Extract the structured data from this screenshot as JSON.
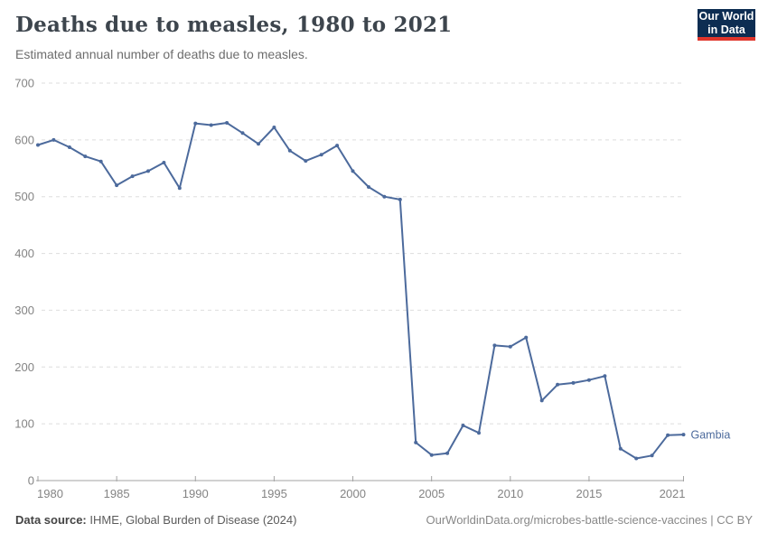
{
  "header": {
    "title": "Deaths due to measles, 1980 to 2021",
    "subtitle": "Estimated annual number of deaths due to measles."
  },
  "logo": {
    "line1": "Our World",
    "line2": "in Data",
    "bg_color": "#0d2d52",
    "accent_color": "#e0352b"
  },
  "chart_data": {
    "type": "line",
    "title": "Deaths due to measles, 1980 to 2021",
    "subtitle": "Estimated annual number of deaths due to measles.",
    "xlabel": "",
    "ylabel": "",
    "xlim": [
      1980,
      2021
    ],
    "ylim": [
      0,
      700
    ],
    "yticks": [
      0,
      100,
      200,
      300,
      400,
      500,
      600,
      700
    ],
    "xticks": [
      1980,
      1985,
      1990,
      1995,
      2000,
      2005,
      2010,
      2015,
      2021
    ],
    "grid": "horizontal-dashed",
    "legend_position": "end-of-line-label",
    "series": [
      {
        "name": "Gambia",
        "color": "#4c6a9c",
        "x": [
          1980,
          1981,
          1982,
          1983,
          1984,
          1985,
          1986,
          1987,
          1988,
          1989,
          1990,
          1991,
          1992,
          1993,
          1994,
          1995,
          1996,
          1997,
          1998,
          1999,
          2000,
          2001,
          2002,
          2003,
          2004,
          2005,
          2006,
          2007,
          2008,
          2009,
          2010,
          2011,
          2012,
          2013,
          2014,
          2015,
          2016,
          2017,
          2018,
          2019,
          2020,
          2021
        ],
        "values": [
          591,
          600,
          587,
          571,
          562,
          520,
          536,
          545,
          560,
          515,
          629,
          626,
          630,
          612,
          593,
          622,
          581,
          563,
          574,
          590,
          545,
          517,
          500,
          495,
          67,
          45,
          48,
          97,
          84,
          238,
          236,
          252,
          141,
          169,
          172,
          177,
          184,
          56,
          39,
          44,
          80,
          81
        ]
      }
    ]
  },
  "footer": {
    "source_label": "Data source:",
    "source_text": " IHME, Global Burden of Disease (2024)",
    "link_text": "OurWorldinData.org/microbes-battle-science-vaccines | CC BY"
  },
  "colors": {
    "line": "#4c6a9c",
    "grid": "#dddddd",
    "axis": "#a3a3a3",
    "tick_text": "#848484"
  }
}
